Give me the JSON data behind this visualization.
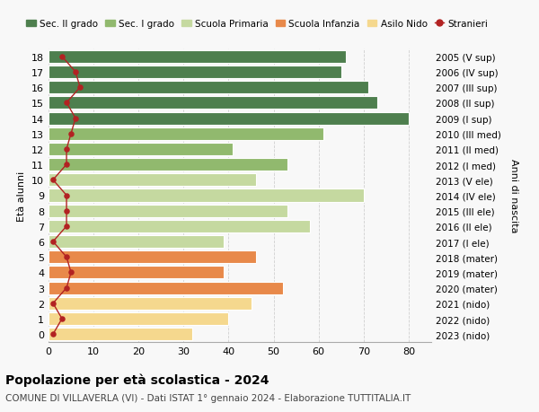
{
  "ages": [
    0,
    1,
    2,
    3,
    4,
    5,
    6,
    7,
    8,
    9,
    10,
    11,
    12,
    13,
    14,
    15,
    16,
    17,
    18
  ],
  "bar_values": [
    32,
    40,
    45,
    52,
    39,
    46,
    39,
    58,
    53,
    70,
    46,
    53,
    41,
    61,
    80,
    73,
    71,
    65,
    66
  ],
  "stranieri": [
    1,
    3,
    1,
    4,
    5,
    4,
    1,
    4,
    4,
    4,
    1,
    4,
    4,
    5,
    6,
    4,
    7,
    6,
    3
  ],
  "right_labels": [
    "2023 (nido)",
    "2022 (nido)",
    "2021 (nido)",
    "2020 (mater)",
    "2019 (mater)",
    "2018 (mater)",
    "2017 (I ele)",
    "2016 (II ele)",
    "2015 (III ele)",
    "2014 (IV ele)",
    "2013 (V ele)",
    "2012 (I med)",
    "2011 (II med)",
    "2010 (III med)",
    "2009 (I sup)",
    "2008 (II sup)",
    "2007 (III sup)",
    "2006 (IV sup)",
    "2005 (V sup)"
  ],
  "bar_colors": [
    "#f5d88e",
    "#f5d88e",
    "#f5d88e",
    "#e8894a",
    "#e8894a",
    "#e8894a",
    "#c5d9a0",
    "#c5d9a0",
    "#c5d9a0",
    "#c5d9a0",
    "#c5d9a0",
    "#91b96e",
    "#91b96e",
    "#91b96e",
    "#4e7f4e",
    "#4e7f4e",
    "#4e7f4e",
    "#4e7f4e",
    "#4e7f4e"
  ],
  "legend_labels": [
    "Sec. II grado",
    "Sec. I grado",
    "Scuola Primaria",
    "Scuola Infanzia",
    "Asilo Nido",
    "Stranieri"
  ],
  "legend_colors": [
    "#4e7f4e",
    "#91b96e",
    "#c5d9a0",
    "#e8894a",
    "#f5d88e",
    "#cc0000"
  ],
  "ylabel": "Età alunni",
  "right_ylabel": "Anni di nascita",
  "title": "Popolazione per età scolastica - 2024",
  "subtitle": "COMUNE DI VILLAVERLA (VI) - Dati ISTAT 1° gennaio 2024 - Elaborazione TUTTITALIA.IT",
  "xlim": [
    0,
    85
  ],
  "xticks": [
    0,
    10,
    20,
    30,
    40,
    50,
    60,
    70,
    80
  ],
  "background_color": "#f8f8f8",
  "plot_bg_color": "#f8f8f8",
  "stranieri_color": "#b22222",
  "grid_color": "#d0d0d0",
  "bar_edge_color": "#ffffff",
  "bar_height": 0.82
}
